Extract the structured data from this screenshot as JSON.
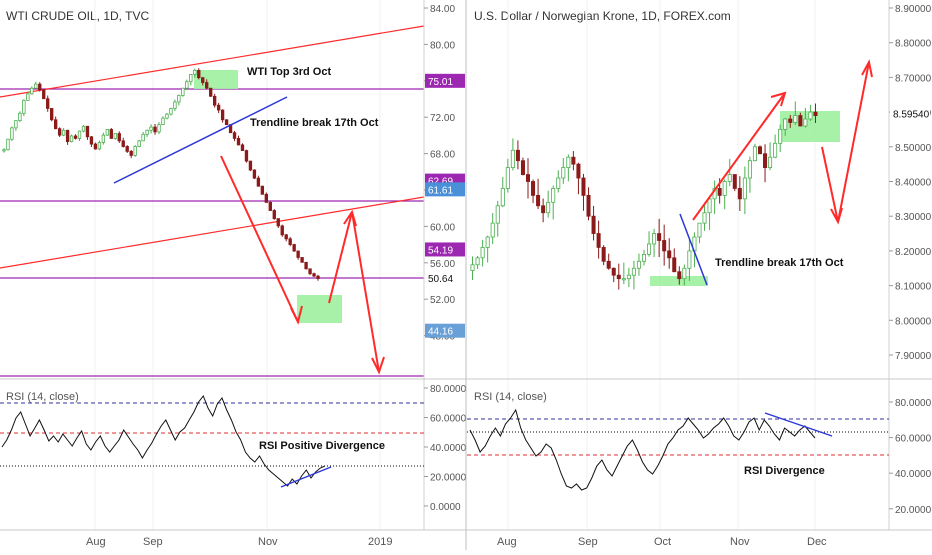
{
  "charts": [
    {
      "id": "wti",
      "title": "WTI CRUDE OIL, 1D, TVC",
      "price_scale": {
        "ticks": [
          "84.00",
          "80.00",
          "76.00",
          "72.00",
          "68.00",
          "64.00",
          "60.00",
          "56.00",
          "52.00",
          "48.00"
        ]
      },
      "price_labels": [
        {
          "text": "75.01",
          "value": 75.01,
          "color": "#9c27b0"
        },
        {
          "text": "62.69",
          "value": 62.69,
          "color": "#9c27b0"
        },
        {
          "text": "61.61",
          "value": 61.61,
          "color": "#4a90d9"
        },
        {
          "text": "54.19",
          "value": 54.19,
          "color": "#9c27b0"
        },
        {
          "text": "50.64",
          "value": 50.64,
          "color": "#ffffff"
        },
        {
          "text": "44.16",
          "value": 44.16,
          "color": "#6aa0d8"
        }
      ],
      "annotations": [
        "WTI Top 3rd Oct",
        "Trendline break 17th Oct",
        "RSI Positive Divergence"
      ],
      "rsi": {
        "title": "RSI (14, close)",
        "ticks": [
          "80.0000",
          "60.0000",
          "40.0000",
          "20.0000",
          "0.0000"
        ]
      },
      "time_axis": [
        "Aug",
        "Sep",
        "Nov",
        "2019"
      ]
    },
    {
      "id": "usdnok",
      "title": "U.S. Dollar / Norwegian Krone, 1D, FOREX.com",
      "price_scale": {
        "ticks": [
          "8.90000",
          "8.80000",
          "8.70000",
          "8.60000",
          "8.50000",
          "8.40000",
          "8.30000",
          "8.20000",
          "8.10000",
          "8.00000",
          "7.90000"
        ]
      },
      "price_labels": [
        {
          "text": "8.59540",
          "value": 8.5954,
          "color": "#ffffff"
        }
      ],
      "annotations": [
        "Trendline break 17th Oct",
        "RSI Divergence"
      ],
      "rsi": {
        "title": "RSI (14, close)",
        "ticks": [
          "80.0000",
          "60.0000",
          "40.0000",
          "20.0000"
        ]
      },
      "time_axis": [
        "Aug",
        "Sep",
        "Oct",
        "Nov",
        "Dec"
      ]
    }
  ],
  "colors": {
    "up": "#4caf50",
    "down": "#8b1a1a",
    "arrow": "#ff2a2a",
    "level": "#9c27b0",
    "trend": "#2a36d8",
    "zone": "#9ff09f"
  },
  "chart_data": [
    {
      "type": "candlestick",
      "title": "WTI CRUDE OIL, 1D, TVC",
      "x_labels": [
        "Aug",
        "Sep",
        "Nov",
        "2019"
      ],
      "ylim": [
        44,
        85
      ],
      "levels": [
        75.01,
        62.69,
        54.19,
        44.16
      ],
      "last": 50.64,
      "series": [
        {
          "name": "Close",
          "values": [
            66.5,
            67.8,
            69.2,
            70.1,
            71.0,
            72.6,
            73.4,
            74.1,
            74.6,
            73.9,
            72.8,
            71.6,
            70.2,
            69.1,
            68.3,
            68.9,
            67.5,
            68.2,
            67.9,
            68.8,
            69.4,
            68.1,
            67.2,
            66.6,
            67.4,
            68.3,
            69.0,
            67.9,
            68.5,
            67.6,
            66.9,
            66.3,
            65.8,
            66.9,
            67.6,
            68.4,
            68.9,
            69.3,
            68.7,
            69.6,
            70.4,
            70.9,
            71.6,
            72.4,
            73.2,
            74.1,
            74.9,
            75.8,
            76.3,
            75.4,
            74.8,
            74.1,
            73.1,
            72.0,
            71.4,
            70.2,
            69.6,
            68.6,
            67.9,
            67.1,
            66.4,
            65.1,
            64.0,
            63.0,
            62.0,
            61.0,
            60.0,
            59.0,
            58.0,
            57.1,
            56.0,
            55.5,
            54.8,
            54.0,
            53.2,
            52.6,
            51.8,
            51.2,
            50.9,
            50.6
          ]
        }
      ]
    },
    {
      "type": "candlestick",
      "title": "U.S. Dollar / Norwegian Krone, 1D, FOREX.com",
      "x_labels": [
        "Aug",
        "Sep",
        "Oct",
        "Nov",
        "Dec"
      ],
      "ylim": [
        7.85,
        8.92
      ],
      "last": 8.5954,
      "series": [
        {
          "name": "Close",
          "values": [
            8.16,
            8.18,
            8.21,
            8.24,
            8.28,
            8.33,
            8.38,
            8.44,
            8.49,
            8.46,
            8.42,
            8.4,
            8.36,
            8.33,
            8.31,
            8.34,
            8.38,
            8.41,
            8.44,
            8.47,
            8.45,
            8.41,
            8.36,
            8.3,
            8.25,
            8.21,
            8.17,
            8.15,
            8.13,
            8.12,
            8.12,
            8.13,
            8.15,
            8.17,
            8.19,
            8.22,
            8.25,
            8.23,
            8.2,
            8.18,
            8.14,
            8.12,
            8.15,
            8.2,
            8.24,
            8.28,
            8.31,
            8.35,
            8.38,
            8.36,
            8.4,
            8.42,
            8.38,
            8.35,
            8.41,
            8.46,
            8.5,
            8.48,
            8.44,
            8.47,
            8.51,
            8.55,
            8.58,
            8.57,
            8.59,
            8.56,
            8.58,
            8.6,
            8.59
          ]
        }
      ]
    }
  ]
}
